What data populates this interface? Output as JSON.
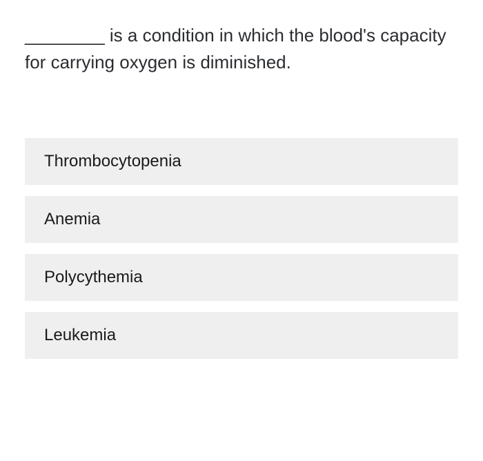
{
  "question": {
    "text": "________ is a condition in which the blood's capacity for carrying oxygen is diminished."
  },
  "options": [
    {
      "label": "Thrombocytopenia"
    },
    {
      "label": "Anemia"
    },
    {
      "label": "Polycythemia"
    },
    {
      "label": "Leukemia"
    }
  ],
  "styles": {
    "question_fontsize": 26,
    "option_fontsize": 24,
    "option_bg": "#efefef",
    "text_color": "#2a2c30",
    "option_text_color": "#1a1a1a",
    "background": "#ffffff"
  }
}
